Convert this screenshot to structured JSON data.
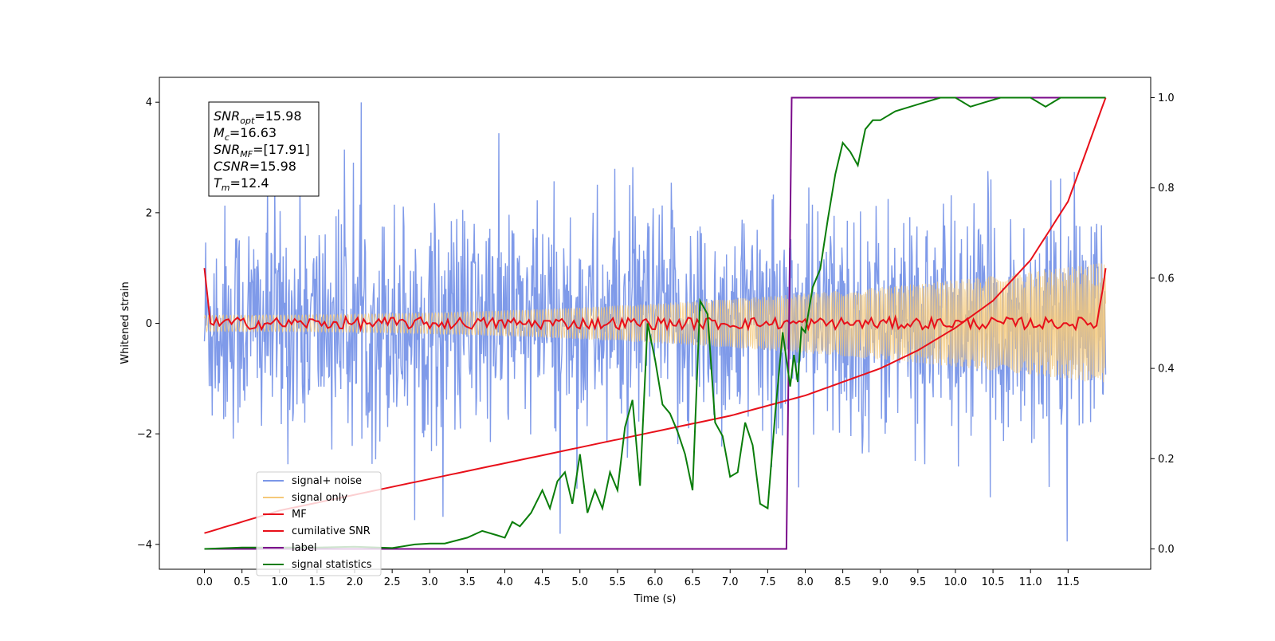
{
  "chart_data": {
    "type": "line",
    "xlabel": "Time (s)",
    "ylabel": "Whitened strain",
    "xlim": [
      -0.6,
      12.6
    ],
    "ylim": [
      -4.45,
      4.45
    ],
    "y2lim": [
      -0.045,
      1.045
    ],
    "xticks": [
      "0.0",
      "0.5",
      "1.0",
      "1.5",
      "2.0",
      "2.5",
      "3.0",
      "3.5",
      "4.0",
      "4.5",
      "5.0",
      "5.5",
      "6.0",
      "6.5",
      "7.0",
      "7.5",
      "8.0",
      "8.5",
      "9.0",
      "9.5",
      "10.0",
      "10.5",
      "11.0",
      "11.5"
    ],
    "yticks": [
      "−4",
      "−2",
      "0",
      "2",
      "4"
    ],
    "y2ticks": [
      "0.0",
      "0.2",
      "0.4",
      "0.6",
      "0.8",
      "1.0"
    ],
    "annotation": {
      "lines": [
        {
          "sym": "SNR",
          "sub": "opt",
          "rest": "=15.98"
        },
        {
          "sym": "M",
          "sub": "c",
          "rest": "=16.63"
        },
        {
          "sym": "SNR",
          "sub": "MF",
          "rest": "=[17.91]"
        },
        {
          "sym": "CSNR",
          "sub": "",
          "rest": "=15.98"
        },
        {
          "sym": "T",
          "sub": "m",
          "rest": "=12.4"
        }
      ],
      "placement": "top-left"
    },
    "legend": {
      "placement": "lower-left",
      "entries": [
        {
          "label": "signal+ noise",
          "color": "#7b97e8"
        },
        {
          "label": "signal only",
          "color": "#f5c97a"
        },
        {
          "label": "MF",
          "color": "#e8101a"
        },
        {
          "label": "cumilative SNR",
          "color": "#e8101a"
        },
        {
          "label": "label",
          "color": "#7a0a8a"
        },
        {
          "label": "signal statistics",
          "color": "#0a7d0a"
        }
      ]
    },
    "series": [
      {
        "name": "signal+ noise",
        "axis": "left",
        "color": "#7b97e8",
        "kind": "noise",
        "t_range": [
          0,
          12
        ],
        "envelope": [
          -4.2,
          4.0
        ]
      },
      {
        "name": "signal only",
        "axis": "left",
        "color": "#f5c97a",
        "kind": "chirp",
        "t_range": [
          0,
          12
        ],
        "amplitude_start": 0.15,
        "amplitude_end": 1.1
      },
      {
        "name": "MF",
        "axis": "left",
        "color": "#e8101a",
        "x": [
          0.0,
          0.05,
          0.1,
          0.2,
          11.8,
          11.9,
          11.95,
          12.0
        ],
        "y": [
          1.0,
          0.5,
          0.0,
          0.05,
          0.1,
          0.3,
          0.6,
          1.0
        ]
      },
      {
        "name": "cumilative SNR",
        "axis": "right",
        "color": "#e8101a",
        "x": [
          0,
          1,
          2,
          3,
          4,
          5,
          6,
          7,
          8,
          8.5,
          9,
          9.5,
          10,
          10.5,
          11,
          11.5,
          12
        ],
        "y": [
          0.035,
          0.085,
          0.12,
          0.155,
          0.19,
          0.225,
          0.26,
          0.295,
          0.34,
          0.37,
          0.4,
          0.44,
          0.49,
          0.55,
          0.64,
          0.77,
          1.0
        ]
      },
      {
        "name": "label",
        "axis": "right",
        "color": "#7a0a8a",
        "x": [
          0,
          7.75,
          7.82,
          12.0
        ],
        "y": [
          0.0,
          0.0,
          1.0,
          1.0
        ]
      },
      {
        "name": "signal statistics",
        "axis": "right",
        "color": "#0a7d0a",
        "x": [
          0,
          0.5,
          1.0,
          1.5,
          2.0,
          2.5,
          2.8,
          3.0,
          3.2,
          3.5,
          3.7,
          3.9,
          4.0,
          4.1,
          4.2,
          4.35,
          4.5,
          4.6,
          4.7,
          4.8,
          4.9,
          5.0,
          5.1,
          5.2,
          5.3,
          5.4,
          5.5,
          5.6,
          5.7,
          5.8,
          5.9,
          6.0,
          6.1,
          6.2,
          6.3,
          6.4,
          6.5,
          6.6,
          6.7,
          6.8,
          6.9,
          7.0,
          7.1,
          7.2,
          7.3,
          7.4,
          7.5,
          7.6,
          7.7,
          7.75,
          7.8,
          7.85,
          7.9,
          7.95,
          8.0,
          8.1,
          8.2,
          8.3,
          8.4,
          8.5,
          8.6,
          8.7,
          8.8,
          8.9,
          9.0,
          9.2,
          9.4,
          9.6,
          9.8,
          10.0,
          10.2,
          10.4,
          10.6,
          10.8,
          11.0,
          11.2,
          11.4,
          11.6,
          11.8,
          12.0
        ],
        "y": [
          0.0,
          0.003,
          0.003,
          0.003,
          0.005,
          0.002,
          0.01,
          0.012,
          0.012,
          0.025,
          0.04,
          0.03,
          0.025,
          0.06,
          0.05,
          0.08,
          0.13,
          0.09,
          0.15,
          0.17,
          0.1,
          0.21,
          0.08,
          0.13,
          0.09,
          0.17,
          0.13,
          0.27,
          0.33,
          0.14,
          0.5,
          0.42,
          0.32,
          0.3,
          0.26,
          0.21,
          0.13,
          0.55,
          0.52,
          0.28,
          0.25,
          0.16,
          0.17,
          0.28,
          0.23,
          0.1,
          0.09,
          0.3,
          0.48,
          0.42,
          0.36,
          0.43,
          0.37,
          0.49,
          0.48,
          0.58,
          0.62,
          0.73,
          0.83,
          0.9,
          0.88,
          0.85,
          0.93,
          0.95,
          0.95,
          0.97,
          0.98,
          0.99,
          1.0,
          1.0,
          0.98,
          0.99,
          1.0,
          1.0,
          1.0,
          0.98,
          1.0,
          1.0,
          1.0,
          1.0
        ]
      }
    ]
  }
}
